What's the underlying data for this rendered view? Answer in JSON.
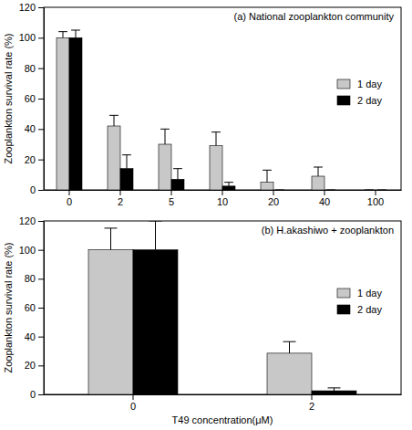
{
  "chart_data": [
    {
      "type": "bar",
      "title": "(a) National zooplankton community",
      "categories": [
        "0",
        "2",
        "5",
        "10",
        "20",
        "40",
        "100"
      ],
      "y_label": "Zooplankton survival rate (%)",
      "series": [
        {
          "name": "1 day",
          "color": "#c8c8c8",
          "values": [
            100,
            42,
            30,
            29,
            5,
            9,
            0
          ],
          "errors": [
            4,
            7,
            10,
            9,
            8,
            6,
            0
          ]
        },
        {
          "name": "2 day",
          "color": "#000000",
          "values": [
            100,
            14,
            7,
            2.5,
            0,
            0,
            0
          ],
          "errors": [
            5,
            9,
            7,
            2.5,
            0,
            0,
            0
          ]
        }
      ],
      "ylim": [
        0,
        120
      ],
      "yticks": [
        0,
        20,
        40,
        60,
        80,
        100,
        120
      ],
      "legend": "right"
    },
    {
      "type": "bar",
      "title": "(b) H.akashiwo + zooplankton",
      "categories": [
        "0",
        "2"
      ],
      "x_label": "T49 concentration(μM)",
      "y_label": "Zooplankton survival rate (%)",
      "series": [
        {
          "name": "1 day",
          "color": "#c8c8c8",
          "values": [
            100,
            28.5
          ],
          "errors": [
            15,
            8
          ]
        },
        {
          "name": "2 day",
          "color": "#000000",
          "values": [
            100,
            2.5
          ],
          "errors": [
            20,
            2
          ]
        }
      ],
      "ylim": [
        0,
        120
      ],
      "yticks": [
        0,
        20,
        40,
        60,
        80,
        100,
        120
      ],
      "legend": "right"
    }
  ]
}
